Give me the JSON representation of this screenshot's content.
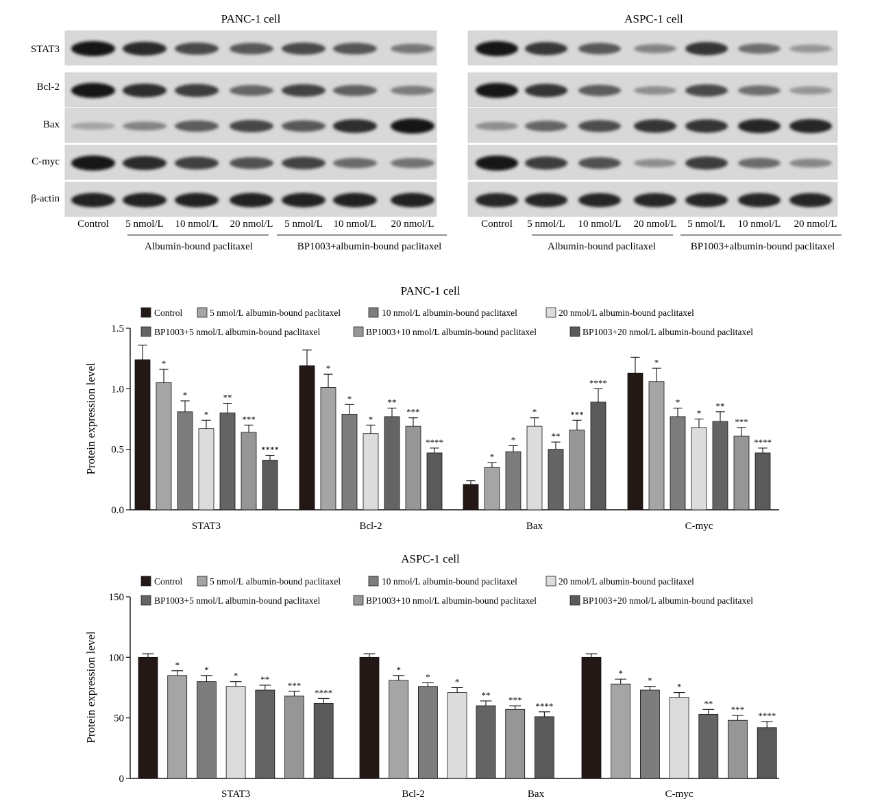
{
  "blots": [
    {
      "title": "PANC-1 cell",
      "proteins": [
        "STAT3",
        "Bcl-2",
        "Bax",
        "C-myc",
        "β-actin"
      ],
      "lanes": [
        "Control",
        "5 nmol/L",
        "10 nmol/L",
        "20 nmol/L",
        "5 nmol/L",
        "10 nmol/L",
        "20 nmol/L"
      ],
      "groups": [
        "Albumin-bound paclitaxel",
        "BP1003+albumin-bound paclitaxel"
      ],
      "band_intensity": [
        [
          1.0,
          0.88,
          0.7,
          0.62,
          0.7,
          0.64,
          0.45
        ],
        [
          1.0,
          0.86,
          0.78,
          0.55,
          0.74,
          0.58,
          0.42
        ],
        [
          0.2,
          0.38,
          0.6,
          0.72,
          0.62,
          0.86,
          1.0
        ],
        [
          1.0,
          0.88,
          0.76,
          0.66,
          0.74,
          0.52,
          0.48
        ],
        [
          0.92,
          0.92,
          0.92,
          0.92,
          0.92,
          0.92,
          0.92
        ]
      ]
    },
    {
      "title": "ASPC-1 cell",
      "proteins": [
        "STAT3",
        "Bcl-2",
        "Bax",
        "C-myc",
        "β-actin"
      ],
      "lanes": [
        "Control",
        "5 nmol/L",
        "10 nmol/L",
        "20 nmol/L",
        "5 nmol/L",
        "10 nmol/L",
        "20 nmol/L"
      ],
      "groups": [
        "Albumin-bound paclitaxel",
        "BP1003+albumin-bound paclitaxel"
      ],
      "band_intensity": [
        [
          1.0,
          0.8,
          0.62,
          0.38,
          0.82,
          0.5,
          0.28
        ],
        [
          1.0,
          0.82,
          0.6,
          0.32,
          0.7,
          0.5,
          0.28
        ],
        [
          0.32,
          0.55,
          0.68,
          0.82,
          0.82,
          0.9,
          0.9
        ],
        [
          1.0,
          0.78,
          0.66,
          0.32,
          0.78,
          0.52,
          0.36
        ],
        [
          0.9,
          0.9,
          0.9,
          0.9,
          0.9,
          0.9,
          0.9
        ]
      ]
    }
  ],
  "chart_data": [
    {
      "type": "bar",
      "title": "PANC-1 cell",
      "ylabel": "Protein expression level",
      "xlabel": "",
      "ylim": [
        0,
        1.5
      ],
      "yticks": [
        "0.0",
        "0.5",
        "1.0",
        "1.5"
      ],
      "ytick_values": [
        0,
        0.5,
        1.0,
        1.5
      ],
      "categories": [
        "STAT3",
        "Bcl-2",
        "Bax",
        "C-myc"
      ],
      "legend_placement": "top",
      "series": [
        {
          "name": "Control",
          "color": "#231815",
          "values": [
            1.24,
            1.19,
            0.21,
            1.13
          ],
          "errors": [
            0.12,
            0.13,
            0.03,
            0.13
          ],
          "sig": [
            "",
            "",
            "",
            ""
          ]
        },
        {
          "name": "5 nmol/L albumin-bound paclitaxel",
          "color": "#a5a5a5",
          "values": [
            1.05,
            1.01,
            0.35,
            1.06
          ],
          "errors": [
            0.11,
            0.11,
            0.04,
            0.11
          ],
          "sig": [
            "*",
            "*",
            "*",
            "*"
          ]
        },
        {
          "name": "10 nmol/L albumin-bound paclitaxel",
          "color": "#7d7d7d",
          "values": [
            0.81,
            0.79,
            0.48,
            0.77
          ],
          "errors": [
            0.09,
            0.08,
            0.05,
            0.07
          ],
          "sig": [
            "*",
            "*",
            "*",
            "*"
          ]
        },
        {
          "name": "20 nmol/L albumin-bound paclitaxel",
          "color": "#dcdcdc",
          "values": [
            0.67,
            0.63,
            0.69,
            0.68
          ],
          "errors": [
            0.07,
            0.07,
            0.07,
            0.07
          ],
          "sig": [
            "*",
            "*",
            "*",
            "*"
          ]
        },
        {
          "name": "BP1003+5 nmol/L albumin-bound paclitaxel",
          "color": "#646464",
          "values": [
            0.8,
            0.77,
            0.5,
            0.73
          ],
          "errors": [
            0.08,
            0.07,
            0.06,
            0.08
          ],
          "sig": [
            "**",
            "**",
            "**",
            "**"
          ]
        },
        {
          "name": "BP1003+10 nmol/L albumin-bound paclitaxel",
          "color": "#969696",
          "values": [
            0.64,
            0.69,
            0.66,
            0.61
          ],
          "errors": [
            0.06,
            0.07,
            0.08,
            0.07
          ],
          "sig": [
            "***",
            "***",
            "***",
            "***"
          ]
        },
        {
          "name": "BP1003+20 nmol/L albumin-bound paclitaxel",
          "color": "#5a5a5a",
          "values": [
            0.41,
            0.47,
            0.89,
            0.47
          ],
          "errors": [
            0.04,
            0.04,
            0.11,
            0.04
          ],
          "sig": [
            "****",
            "****",
            "****",
            "****"
          ]
        }
      ]
    },
    {
      "type": "bar",
      "title": "ASPC-1 cell",
      "ylabel": "Protein expression level",
      "xlabel": "",
      "ylim": [
        0,
        150
      ],
      "yticks": [
        "0",
        "50",
        "100",
        "150"
      ],
      "ytick_values": [
        0,
        50,
        100,
        150
      ],
      "categories": [
        "STAT3",
        "Bcl-2",
        "Bax",
        "C-myc"
      ],
      "legend_placement": "top",
      "series": [
        {
          "name": "Control",
          "color": "#231815",
          "values": [
            100,
            100,
            null,
            100
          ],
          "errors": [
            3,
            3,
            null,
            3
          ],
          "sig": [
            "",
            "",
            "",
            ""
          ]
        },
        {
          "name": "5 nmol/L albumin-bound paclitaxel",
          "color": "#a5a5a5",
          "values": [
            85,
            81,
            null,
            78
          ],
          "errors": [
            4,
            4,
            null,
            4
          ],
          "sig": [
            "*",
            "*",
            "",
            "*"
          ]
        },
        {
          "name": "10 nmol/L albumin-bound paclitaxel",
          "color": "#7d7d7d",
          "values": [
            80,
            76,
            null,
            73
          ],
          "errors": [
            5,
            3,
            null,
            3
          ],
          "sig": [
            "*",
            "*",
            "",
            "*"
          ]
        },
        {
          "name": "20 nmol/L albumin-bound paclitaxel",
          "color": "#dcdcdc",
          "values": [
            76,
            71,
            null,
            67
          ],
          "errors": [
            4,
            4,
            null,
            4
          ],
          "sig": [
            "*",
            "*",
            "",
            "*"
          ]
        },
        {
          "name": "BP1003+5 nmol/L albumin-bound paclitaxel",
          "color": "#646464",
          "values": [
            73,
            null,
            60,
            53
          ],
          "errors": [
            4,
            null,
            4,
            4
          ],
          "sig": [
            "**",
            "",
            "**",
            "**"
          ]
        },
        {
          "name": "BP1003+10 nmol/L albumin-bound paclitaxel",
          "color": "#969696",
          "values": [
            68,
            null,
            57,
            48
          ],
          "errors": [
            4,
            null,
            3,
            4
          ],
          "sig": [
            "***",
            "",
            "***",
            "***"
          ]
        },
        {
          "name": "BP1003+20 nmol/L albumin-bound paclitaxel",
          "color": "#5a5a5a",
          "values": [
            62,
            null,
            51,
            42
          ],
          "errors": [
            4,
            null,
            4,
            5
          ],
          "sig": [
            "****",
            "",
            "****",
            "****"
          ]
        }
      ]
    }
  ]
}
